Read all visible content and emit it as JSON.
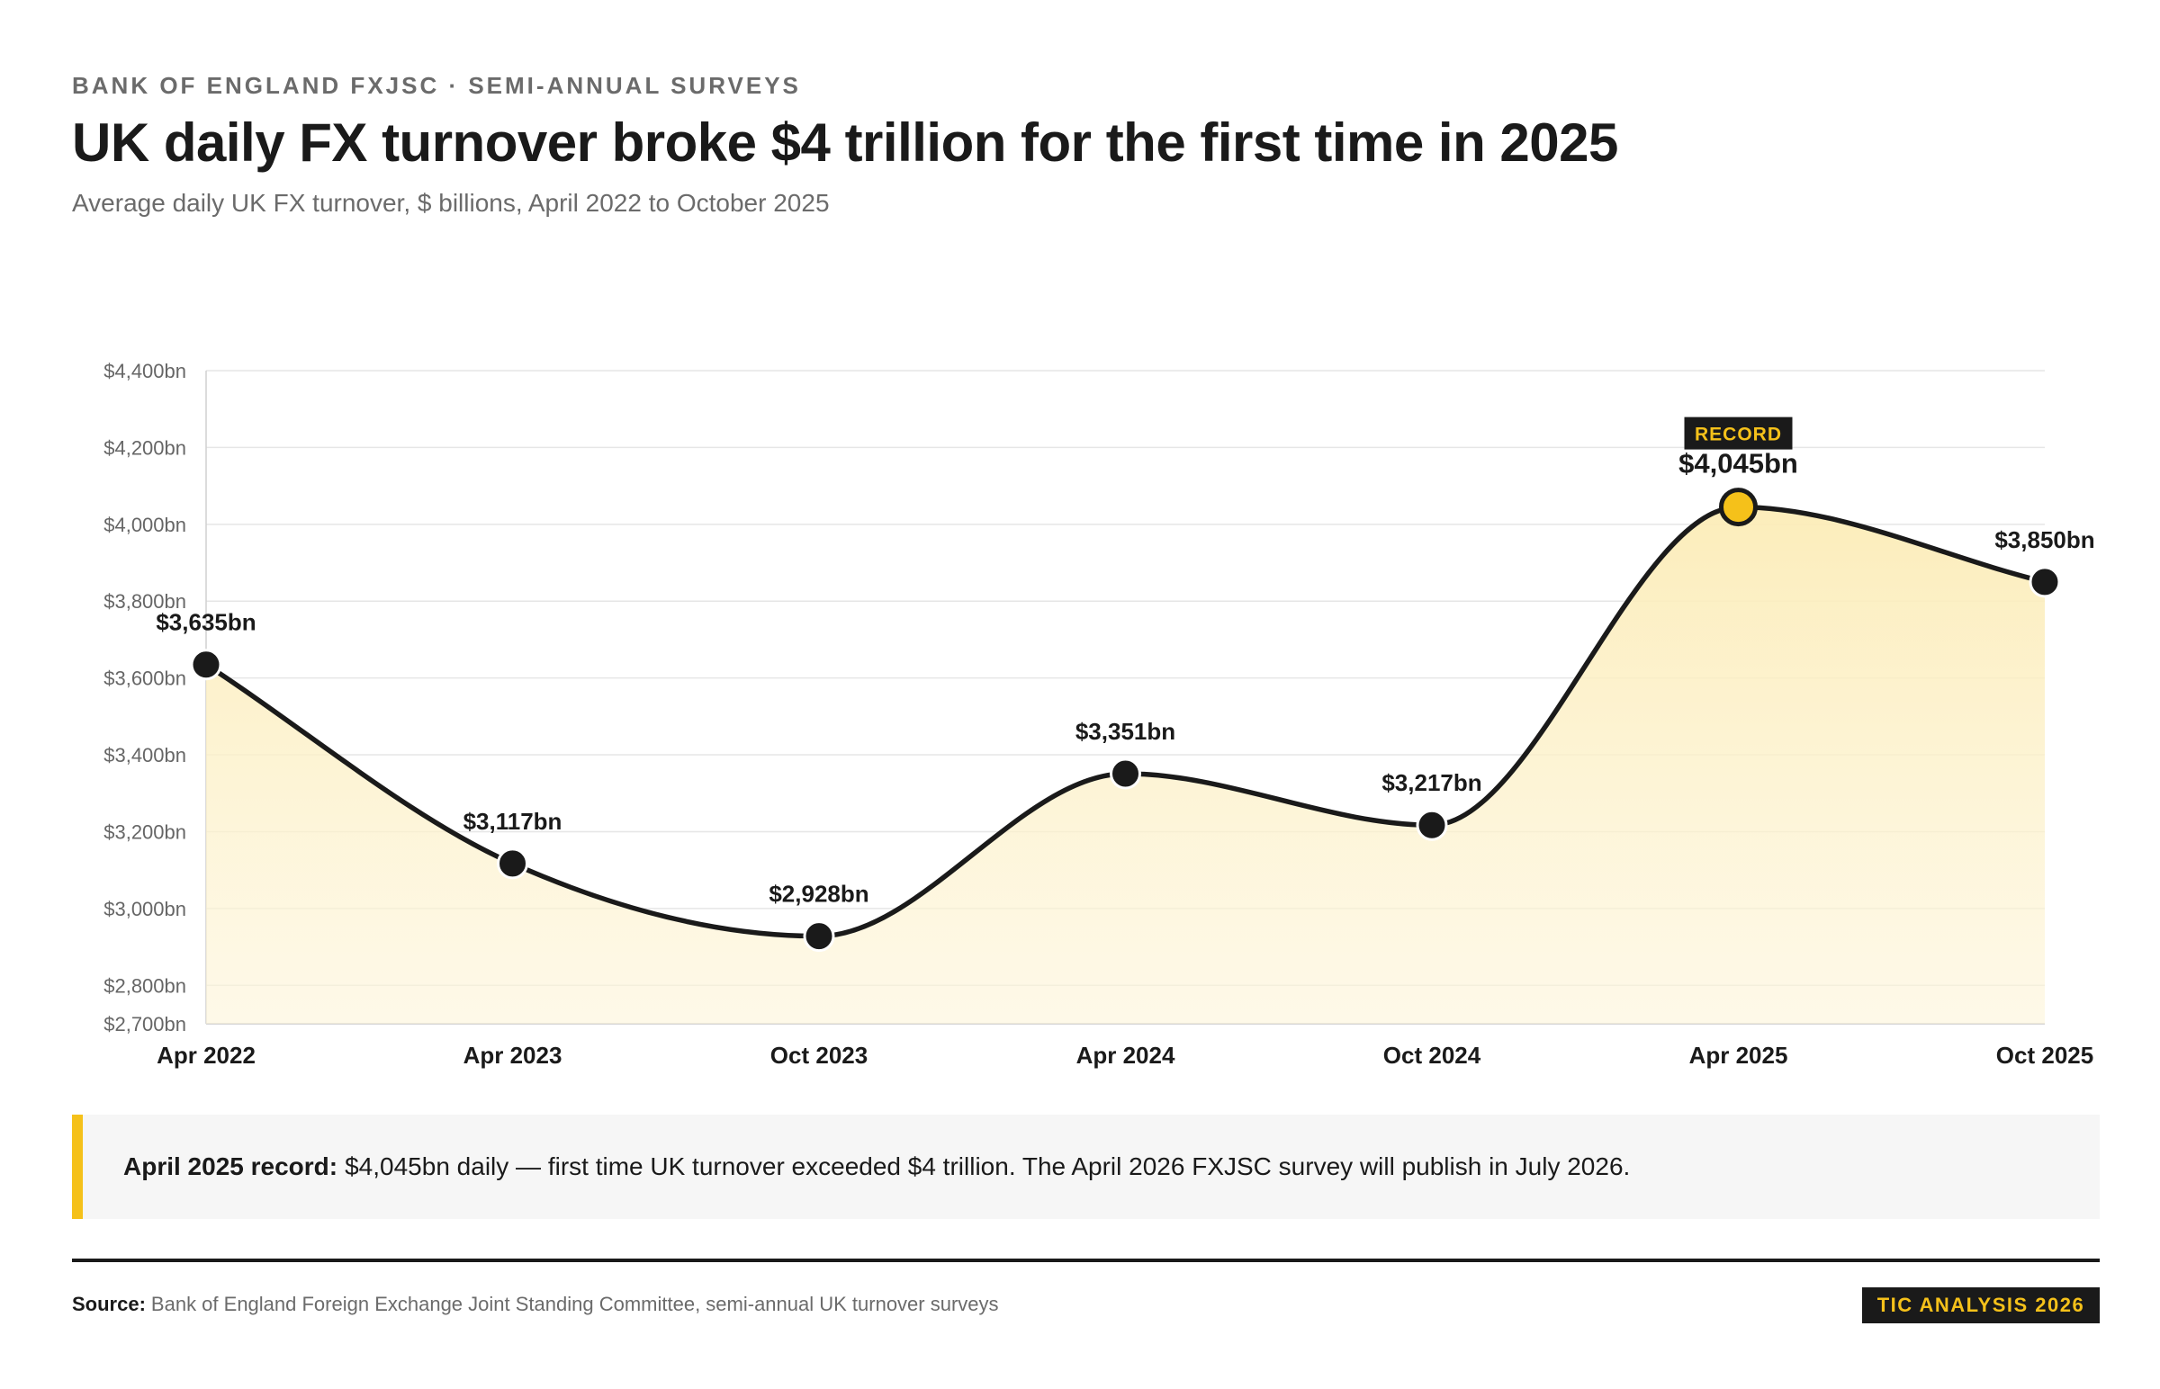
{
  "header": {
    "kicker": "BANK OF ENGLAND FXJSC · SEMI-ANNUAL SURVEYS",
    "title": "UK daily FX turnover broke $4 trillion for the first time in 2025",
    "subtitle": "Average daily UK FX turnover, $ billions, April 2022 to October 2025"
  },
  "chart_data": {
    "type": "area",
    "title": "UK daily FX turnover broke $4 trillion for the first time in 2025",
    "subtitle": "Average daily UK FX turnover, $ billions, April 2022 to October 2025",
    "xlabel": "",
    "ylabel": "",
    "categories": [
      "Apr 2022",
      "Apr 2023",
      "Oct 2023",
      "Apr 2024",
      "Oct 2024",
      "Apr 2025",
      "Oct 2025"
    ],
    "values": [
      3635,
      3117,
      2928,
      3351,
      3217,
      4045,
      3850
    ],
    "data_labels": [
      "$3,635bn",
      "$3,117bn",
      "$2,928bn",
      "$3,351bn",
      "$3,217bn",
      "$4,045bn",
      "$3,850bn"
    ],
    "ylim": [
      2700,
      4400
    ],
    "yticks": [
      2700,
      2800,
      3000,
      3200,
      3400,
      3600,
      3800,
      4000,
      4200,
      4400
    ],
    "ytick_labels": [
      "$2,700bn",
      "$2,800bn",
      "$3,000bn",
      "$3,200bn",
      "$3,400bn",
      "$3,600bn",
      "$3,800bn",
      "$4,000bn",
      "$4,200bn",
      "$4,400bn"
    ],
    "grid": true,
    "legend": "none",
    "highlight": {
      "category": "Apr 2025",
      "badge": "RECORD",
      "color": "#f5c11a"
    },
    "colors": {
      "line": "#1a1a1a",
      "fill": "#fdf1c6",
      "marker": "#1a1a1a",
      "highlight_marker": "#f5c11a",
      "grid": "#e6e6e6",
      "tick_text": "#666666"
    }
  },
  "callout": {
    "lead": "April 2025 record:",
    "text": "$4,045bn daily — first time UK turnover exceeded $4 trillion. The April 2026 FXJSC survey will publish in July 2026."
  },
  "footer": {
    "source_label": "Source:",
    "source_text": "Bank of England Foreign Exchange Joint Standing Committee, semi-annual UK turnover surveys",
    "badge": "TIC ANALYSIS 2026"
  },
  "colors": {
    "accent": "#f5c11a",
    "ink": "#1a1a1a",
    "muted": "#6b6b6b",
    "panel": "#f6f6f6"
  }
}
